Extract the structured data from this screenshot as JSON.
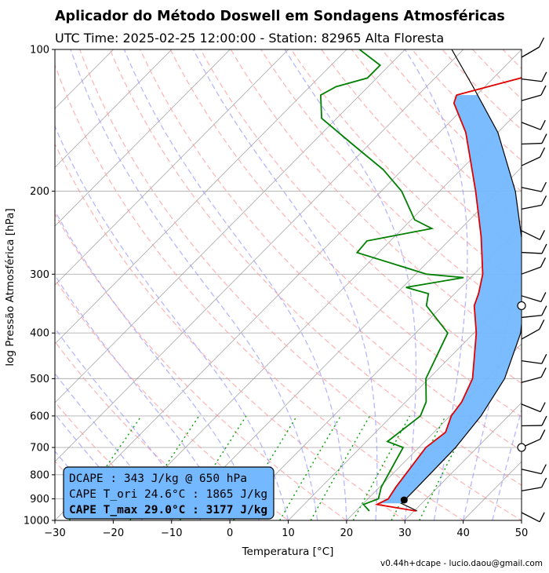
{
  "title": "Aplicador do Método Doswell em Sondagens Atmosféricas",
  "subtitle": "UTC Time: 2025-02-25 12:00:00 - Station: 82965 Alta Floresta",
  "footer": "v0.44h+dcape  -  lucio.daou@gmail.com",
  "chart_data": {
    "type": "skew-t",
    "xlabel": "Temperatura [°C]",
    "ylabel": "log Pressão Atmosférica [hPa]",
    "xlim": [
      -30,
      50
    ],
    "ylim_hpa": [
      1000,
      100
    ],
    "y_scale": "log",
    "grid": true,
    "x_ticks": [
      -30,
      -20,
      -10,
      0,
      10,
      20,
      30,
      40,
      50
    ],
    "y_ticks": [
      100,
      200,
      300,
      400,
      500,
      600,
      700,
      800,
      900,
      1000
    ],
    "temperature": [
      {
        "p": 955,
        "t": 30.3
      },
      {
        "p": 925,
        "t": 22.5
      },
      {
        "p": 900,
        "t": 23.5
      },
      {
        "p": 850,
        "t": 22.8
      },
      {
        "p": 700,
        "t": 21.2
      },
      {
        "p": 650,
        "t": 22.0
      },
      {
        "p": 600,
        "t": 20.2
      },
      {
        "p": 560,
        "t": 19.6
      },
      {
        "p": 500,
        "t": 17.5
      },
      {
        "p": 400,
        "t": 10.4
      },
      {
        "p": 350,
        "t": 5.4
      },
      {
        "p": 330,
        "t": 4.1
      },
      {
        "p": 300,
        "t": 1.5
      },
      {
        "p": 250,
        "t": -5.1
      },
      {
        "p": 200,
        "t": -13.8
      },
      {
        "p": 150,
        "t": -25.5
      },
      {
        "p": 130,
        "t": -32.5
      },
      {
        "p": 125,
        "t": -33.4
      },
      {
        "p": 115,
        "t": -25.3
      },
      {
        "p": 100,
        "t": -24.3
      }
    ],
    "dewpoint": [
      {
        "p": 955,
        "t": 22.3
      },
      {
        "p": 925,
        "t": 20.2
      },
      {
        "p": 900,
        "t": 21.8
      },
      {
        "p": 850,
        "t": 20.3
      },
      {
        "p": 700,
        "t": 17.3
      },
      {
        "p": 680,
        "t": 13.6
      },
      {
        "p": 600,
        "t": 14.9
      },
      {
        "p": 560,
        "t": 13.5
      },
      {
        "p": 500,
        "t": 9.5
      },
      {
        "p": 400,
        "t": 5.5
      },
      {
        "p": 350,
        "t": -2.8
      },
      {
        "p": 330,
        "t": -4.5
      },
      {
        "p": 320,
        "t": -9.4
      },
      {
        "p": 305,
        "t": -1.2
      },
      {
        "p": 300,
        "t": -8.1
      },
      {
        "p": 270,
        "t": -23.7
      },
      {
        "p": 255,
        "t": -24.0
      },
      {
        "p": 240,
        "t": -15.0
      },
      {
        "p": 230,
        "t": -19.4
      },
      {
        "p": 200,
        "t": -26.5
      },
      {
        "p": 180,
        "t": -33.3
      },
      {
        "p": 160,
        "t": -42.4
      },
      {
        "p": 140,
        "t": -52.6
      },
      {
        "p": 125,
        "t": -56.7
      },
      {
        "p": 120,
        "t": -55.5
      },
      {
        "p": 115,
        "t": -51.6
      },
      {
        "p": 108,
        "t": -51.6
      },
      {
        "p": 100,
        "t": -57.8
      }
    ],
    "parcel": [
      {
        "p": 955,
        "t": 30.5
      },
      {
        "p": 920,
        "t": 26.5
      },
      {
        "p": 850,
        "t": 26.5
      },
      {
        "p": 700,
        "t": 26.3
      },
      {
        "p": 600,
        "t": 25.3
      },
      {
        "p": 500,
        "t": 23.0
      },
      {
        "p": 400,
        "t": 18.0
      },
      {
        "p": 300,
        "t": 9.0
      },
      {
        "p": 200,
        "t": -7.0
      },
      {
        "p": 150,
        "t": -20.0
      },
      {
        "p": 120,
        "t": -32.0
      },
      {
        "p": 100,
        "t": -42.0
      }
    ],
    "lcl": {
      "p": 905,
      "t": 26.4
    },
    "cape_shading": {
      "from_p": 920,
      "to_p": 125,
      "color": "#74b8ff"
    },
    "line_colors": {
      "temperature": "#e00000",
      "dewpoint": "#008000",
      "parcel": "#000000",
      "isotherm": "#808080",
      "dry_adiabat": "#ff9999",
      "moist_adiabat": "#9999ff",
      "mixing_ratio": "#00a000"
    },
    "wind_barbs_count": 22,
    "calm_levels_hpa": [
      350,
      700
    ],
    "info_box": {
      "dcape": "DCAPE :  343 J/kg @ 650 hPa",
      "cape_ori": "CAPE T_ori 24.6°C : 1865 J/kg",
      "cape_max": "CAPE T_max 29.0°C : 3177 J/kg",
      "background": "#74b8ff"
    }
  }
}
